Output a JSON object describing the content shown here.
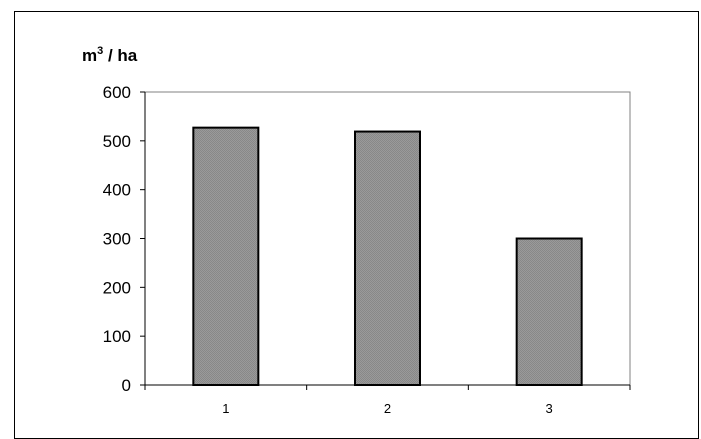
{
  "chart_data": {
    "type": "bar",
    "categories": [
      "1",
      "2",
      "3"
    ],
    "values": [
      527,
      519,
      300
    ],
    "title": "",
    "xlabel": "",
    "ylabel": {
      "base": "m",
      "superscript": "3",
      "suffix": " / ha"
    },
    "ylim": [
      0,
      600
    ],
    "yticks": [
      "0",
      "100",
      "200",
      "300",
      "400",
      "500",
      "600"
    ],
    "grid": false,
    "legend": "none",
    "colors": {
      "bar_fill": "#888888",
      "bar_stroke": "#000000",
      "axis": "#000000",
      "plot_border": "#808080"
    }
  }
}
